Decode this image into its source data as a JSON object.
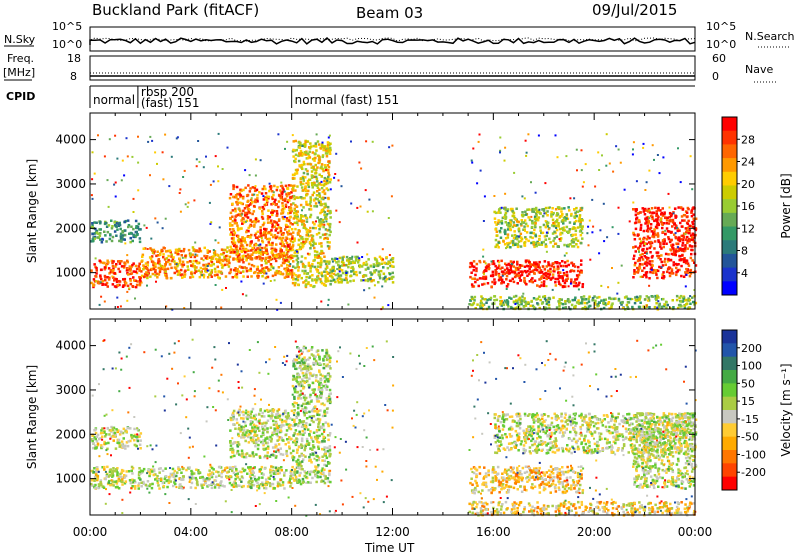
{
  "header": {
    "station": "Buckland Park (fitACF)",
    "beam": "Beam 03",
    "date": "09/Jul/2015"
  },
  "meta_panels": {
    "nsky_label": "N.Sky",
    "nsky_ticks": [
      "10^5",
      "10^0"
    ],
    "nsearch_label": "N.Search",
    "nsearch_ticks": [
      "10^5",
      "10^0"
    ],
    "freq_label_1": "Freq.",
    "freq_label_2": "[MHz]",
    "freq_ticks": [
      "18",
      "8"
    ],
    "nave_label": "Nave",
    "nave_ticks": [
      "60",
      "0"
    ],
    "cpid_label": "CPID",
    "cpid_segments": [
      {
        "label": "normal",
        "start_h": 0.0,
        "end_h": 1.9
      },
      {
        "label": "rbsp 200\n(fast) 151",
        "start_h": 1.9,
        "end_h": 8.0
      },
      {
        "label": "normal (fast) 151",
        "start_h": 8.0,
        "end_h": 24.0
      }
    ]
  },
  "colorbars": {
    "power": {
      "label": "Power [dB]",
      "ticks": [
        "28",
        "24",
        "20",
        "16",
        "12",
        "8",
        "4"
      ],
      "colors": [
        "#ff0000",
        "#ff3300",
        "#ff6600",
        "#ff9900",
        "#ffcc00",
        "#cccc00",
        "#99cc33",
        "#66aa55",
        "#339966",
        "#2b7a7a",
        "#225599",
        "#1a33cc",
        "#0000ff"
      ]
    },
    "velocity": {
      "label": "Velocity [m s⁻¹]",
      "ticks": [
        "200",
        "100",
        "50",
        "15",
        "-15",
        "-50",
        "-100",
        "-200"
      ],
      "colors": [
        "#1a3399",
        "#2255aa",
        "#337766",
        "#44aa44",
        "#66cc33",
        "#aacc44",
        "#c8c8c0",
        "#ffcc33",
        "#ffaa00",
        "#ff7700",
        "#ff4400",
        "#ff0000"
      ]
    }
  },
  "chart_data": [
    {
      "type": "heatmap",
      "name": "power",
      "xlabel": "",
      "ylabel": "Slant Range [km]",
      "xlim": [
        0,
        24
      ],
      "ylim": [
        180,
        4600
      ],
      "yticks": [
        1000,
        2000,
        3000,
        4000
      ],
      "zlim": [
        0,
        30
      ],
      "zunit": "dB",
      "regions": [
        {
          "t0": 0.0,
          "t1": 2.0,
          "r0": 700,
          "r1": 1300,
          "level": 26
        },
        {
          "t0": 0.0,
          "t1": 2.0,
          "r0": 1700,
          "r1": 2200,
          "level": 10
        },
        {
          "t0": 2.0,
          "t1": 8.0,
          "r0": 900,
          "r1": 1600,
          "level": 22
        },
        {
          "t0": 5.5,
          "t1": 8.0,
          "r0": 1300,
          "r1": 3000,
          "level": 24
        },
        {
          "t0": 8.0,
          "t1": 9.5,
          "r0": 700,
          "r1": 4000,
          "level": 18
        },
        {
          "t0": 9.5,
          "t1": 12.0,
          "r0": 800,
          "r1": 1400,
          "level": 16
        },
        {
          "t0": 15.0,
          "t1": 19.5,
          "r0": 700,
          "r1": 1300,
          "level": 28
        },
        {
          "t0": 16.0,
          "t1": 19.5,
          "r0": 1600,
          "r1": 2500,
          "level": 16
        },
        {
          "t0": 21.5,
          "t1": 24.0,
          "r0": 900,
          "r1": 2500,
          "level": 28
        },
        {
          "t0": 15.0,
          "t1": 24.0,
          "r0": 200,
          "r1": 500,
          "level": 14
        }
      ]
    },
    {
      "type": "heatmap",
      "name": "velocity",
      "xlabel": "Time UT",
      "ylabel": "Slant Range [km]",
      "xlim": [
        0,
        24
      ],
      "ylim": [
        180,
        4600
      ],
      "yticks": [
        1000,
        2000,
        3000,
        4000
      ],
      "xticks": [
        "00:00",
        "04:00",
        "08:00",
        "12:00",
        "16:00",
        "20:00",
        "00:00"
      ],
      "zlim": [
        -250,
        250
      ],
      "zunit": "m s^-1",
      "regions": [
        {
          "t0": 0.0,
          "t1": 8.0,
          "r0": 800,
          "r1": 1300,
          "level": 0
        },
        {
          "t0": 0.0,
          "t1": 2.0,
          "r0": 1700,
          "r1": 2200,
          "level": 0
        },
        {
          "t0": 5.5,
          "t1": 8.0,
          "r0": 1500,
          "r1": 2600,
          "level": 0
        },
        {
          "t0": 8.0,
          "t1": 9.5,
          "r0": 900,
          "r1": 4000,
          "level": 20
        },
        {
          "t0": 15.0,
          "t1": 19.5,
          "r0": 700,
          "r1": 1300,
          "level": -70
        },
        {
          "t0": 16.0,
          "t1": 24.0,
          "r0": 1600,
          "r1": 2500,
          "level": 0
        },
        {
          "t0": 21.5,
          "t1": 24.0,
          "r0": 800,
          "r1": 2500,
          "level": 0
        },
        {
          "t0": 15.0,
          "t1": 24.0,
          "r0": 200,
          "r1": 500,
          "level": -60
        }
      ]
    }
  ]
}
